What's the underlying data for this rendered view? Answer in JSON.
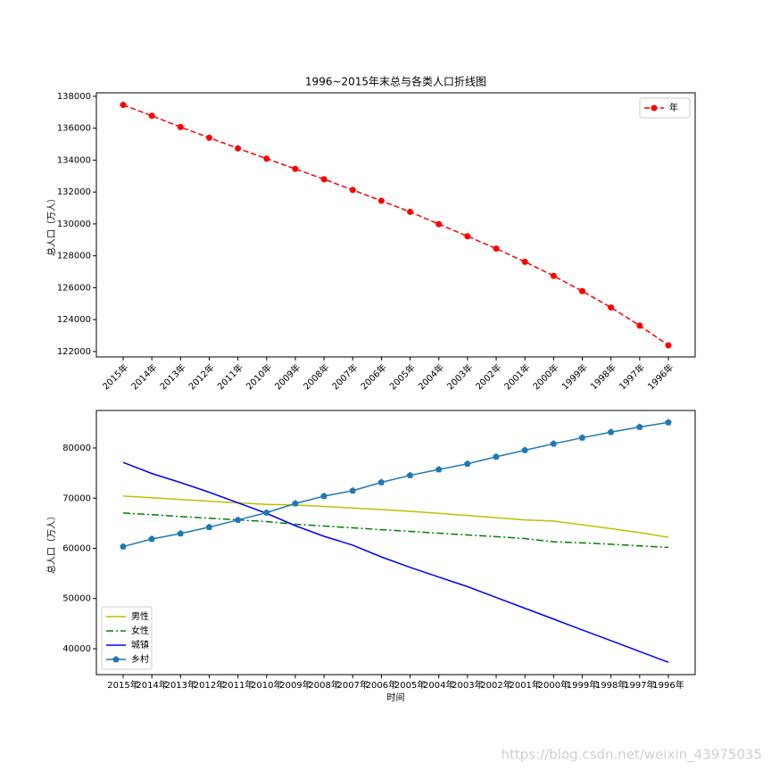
{
  "chart_data": [
    {
      "type": "line",
      "title": "1996~2015年末总与各类人口折线图",
      "ylabel": "总人口（万人）",
      "categories": [
        "2015年",
        "2014年",
        "2013年",
        "2012年",
        "2011年",
        "2010年",
        "2009年",
        "2008年",
        "2007年",
        "2006年",
        "2005年",
        "2004年",
        "2003年",
        "2002年",
        "2001年",
        "2000年",
        "1999年",
        "1998年",
        "1997年",
        "1996年"
      ],
      "rotate_xticks": true,
      "ylim": [
        121660,
        138220
      ],
      "yticks": [
        122000,
        124000,
        126000,
        128000,
        130000,
        132000,
        134000,
        136000,
        138000
      ],
      "legend": "upper right",
      "series": [
        {
          "name": "年",
          "color": "#ff0000",
          "linestyle": "dashed",
          "marker": "o",
          "values": [
            137462,
            136782,
            136072,
            135404,
            134735,
            134091,
            133450,
            132802,
            132129,
            131448,
            130756,
            129988,
            129227,
            128453,
            127627,
            126743,
            125786,
            124761,
            123626,
            122389
          ]
        }
      ]
    },
    {
      "type": "line",
      "ylabel": "总人口（万人）",
      "xlabel": "时间",
      "categories": [
        "2015年",
        "2014年",
        "2013年",
        "2012年",
        "2011年",
        "2010年",
        "2009年",
        "2008年",
        "2007年",
        "2006年",
        "2005年",
        "2004年",
        "2003年",
        "2002年",
        "2001年",
        "2000年",
        "1999年",
        "1998年",
        "1997年",
        "1996年"
      ],
      "rotate_xticks": false,
      "ylim": [
        34840,
        87470
      ],
      "yticks": [
        40000,
        50000,
        60000,
        70000,
        80000
      ],
      "legend": "lower left",
      "series": [
        {
          "name": "男性",
          "color": "#bfbf00",
          "linestyle": "solid",
          "marker": null,
          "values": [
            70414,
            70079,
            69728,
            69395,
            69068,
            68748,
            68647,
            68357,
            68048,
            67728,
            67375,
            66976,
            66556,
            66115,
            65672,
            65437,
            64692,
            63940,
            63131,
            62200
          ]
        },
        {
          "name": "女性",
          "color": "#008000",
          "linestyle": "dashdot",
          "marker": null,
          "values": [
            67048,
            66703,
            66344,
            66009,
            65667,
            65343,
            64803,
            64445,
            64081,
            63720,
            63381,
            63012,
            62671,
            62338,
            61955,
            61306,
            61094,
            60821,
            60495,
            60189
          ]
        },
        {
          "name": "城镇",
          "color": "#0000ff",
          "linestyle": "solid",
          "marker": null,
          "values": [
            77116,
            74916,
            73111,
            71182,
            69079,
            66978,
            64512,
            62403,
            60633,
            58288,
            56212,
            54283,
            52376,
            50212,
            48064,
            45906,
            43748,
            41608,
            39449,
            37304
          ]
        },
        {
          "name": "乡村",
          "color": "#1f77b4",
          "linestyle": "solid",
          "marker": "p",
          "values": [
            60346,
            61866,
            62961,
            64222,
            65656,
            67113,
            68938,
            70399,
            71496,
            73160,
            74544,
            75705,
            76851,
            78241,
            79563,
            80837,
            82038,
            83153,
            84177,
            85085
          ]
        }
      ]
    }
  ],
  "watermark": "https://blog.csdn.net/weixin_43975035"
}
